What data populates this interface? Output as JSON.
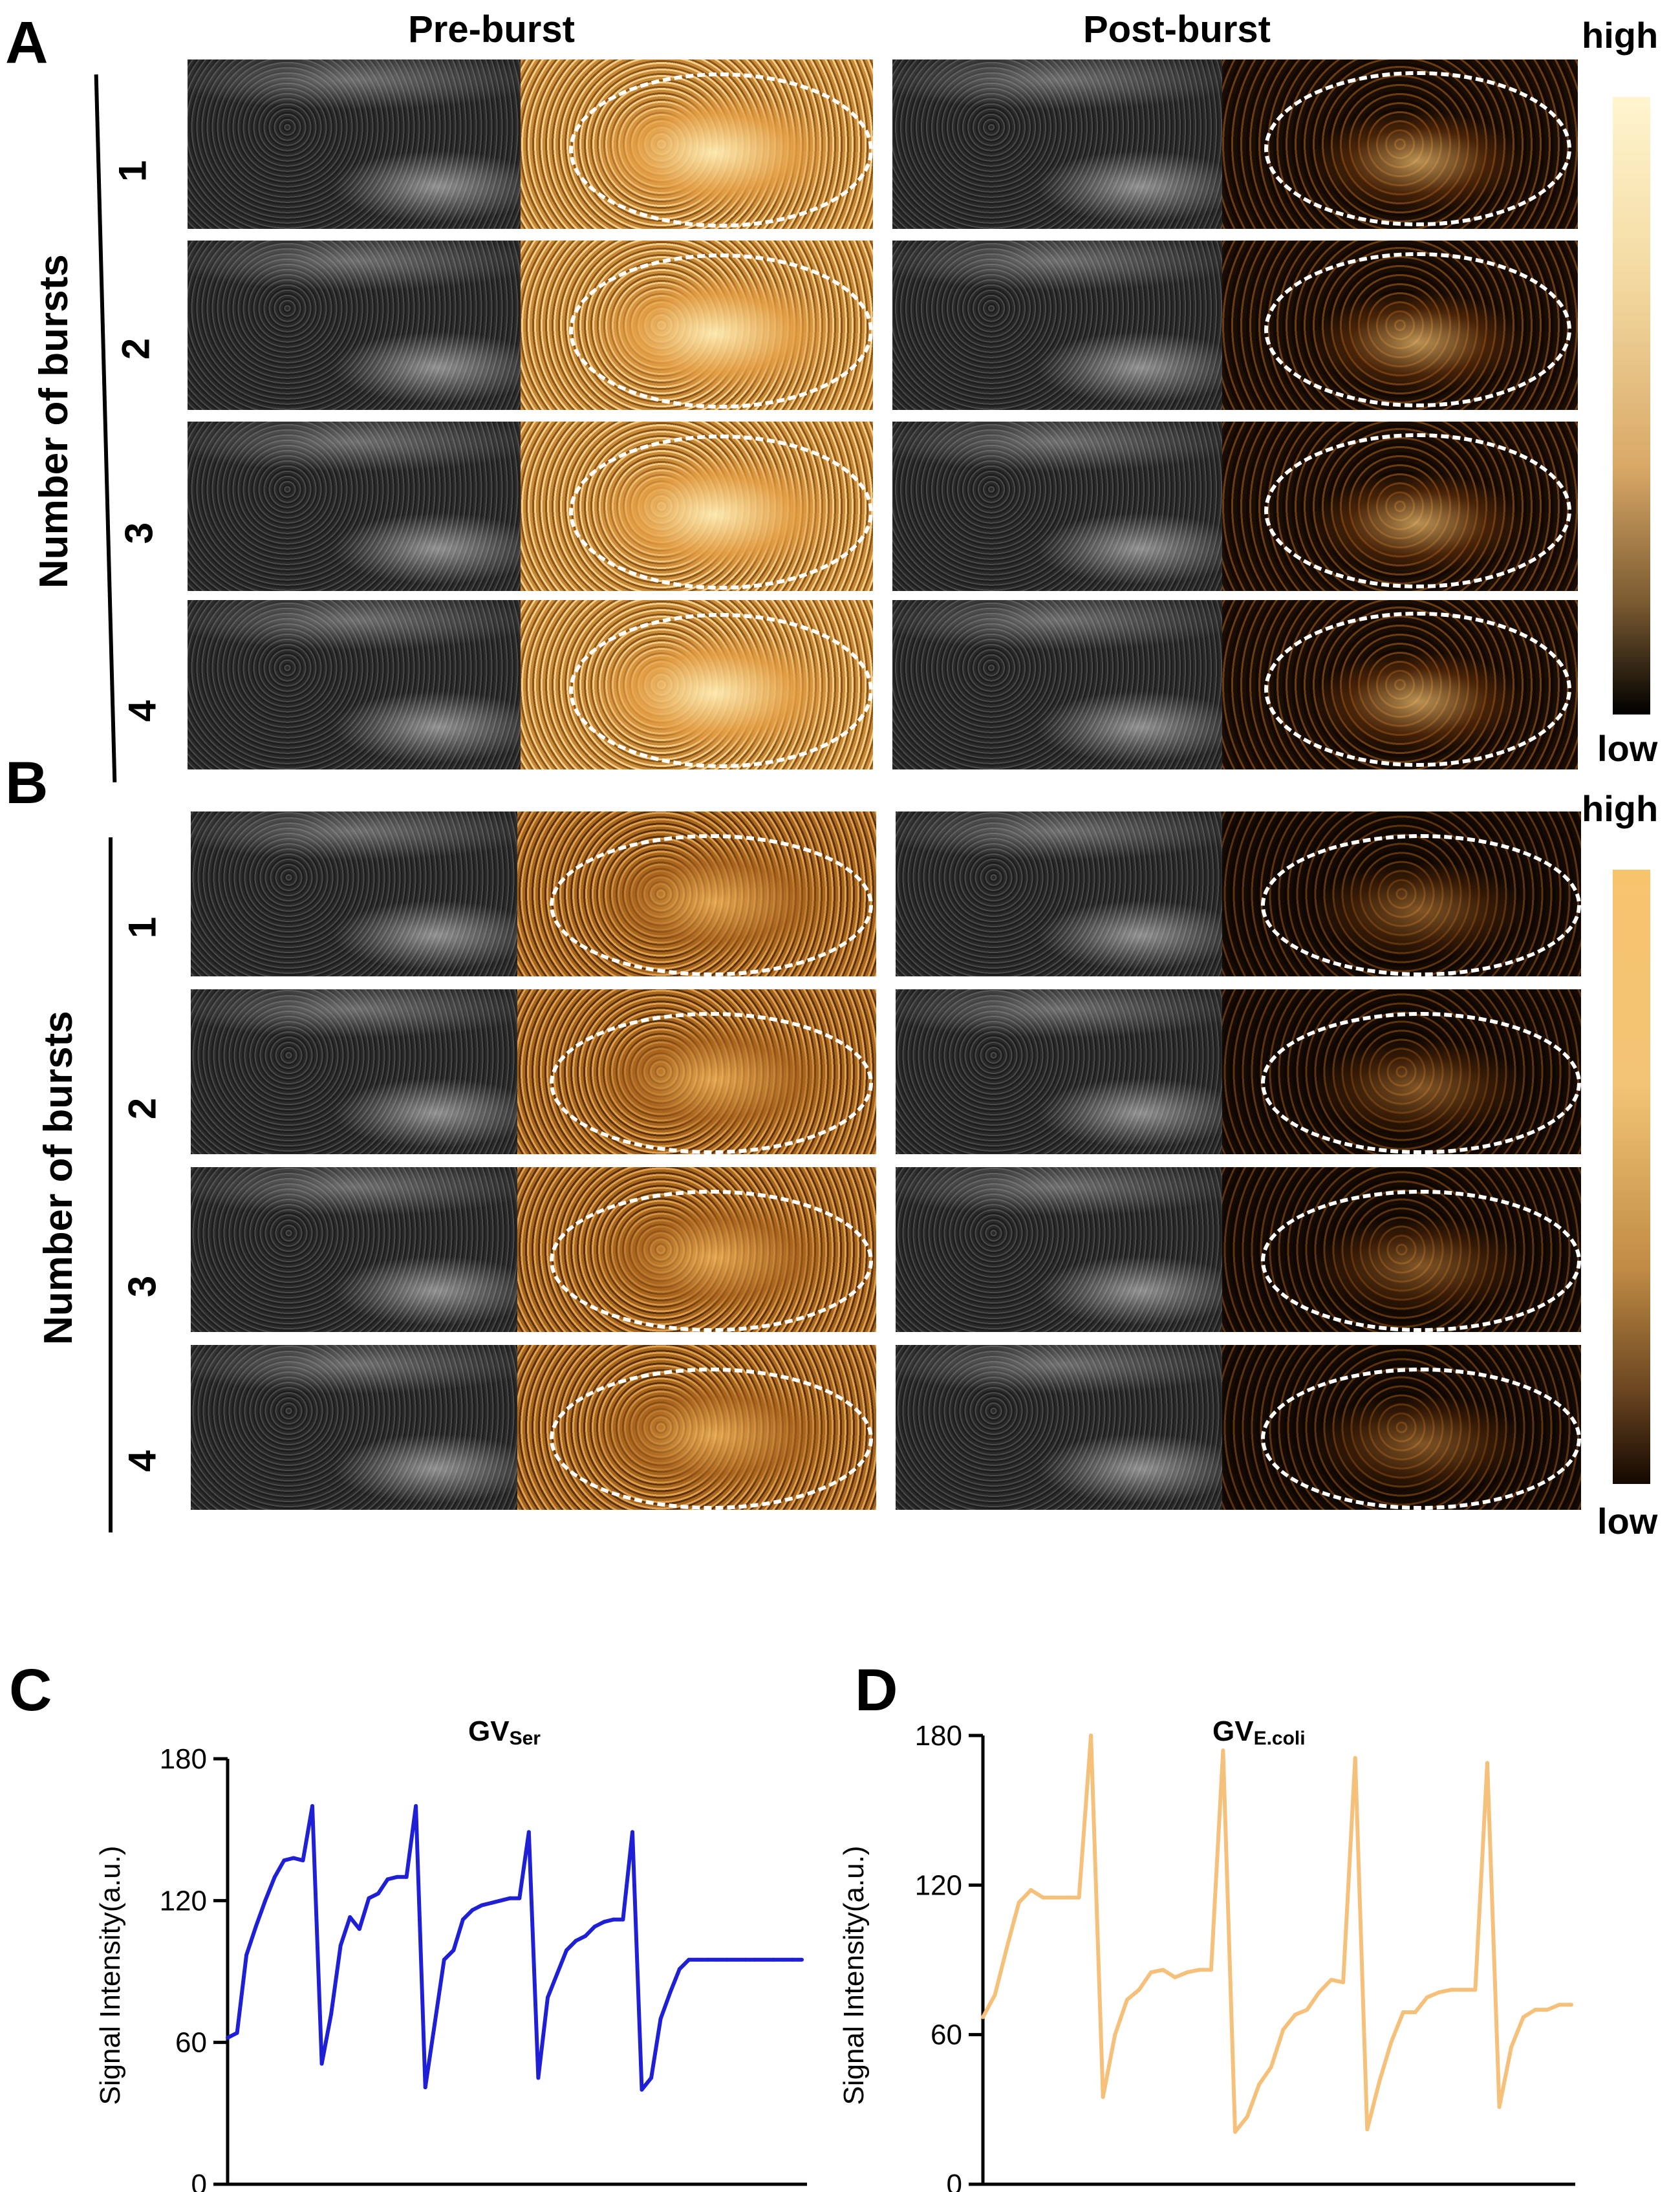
{
  "panels": {
    "a": {
      "letter": "A"
    },
    "b": {
      "letter": "B"
    },
    "c": {
      "letter": "C"
    },
    "d": {
      "letter": "D"
    }
  },
  "column_titles": {
    "pre": "Pre-burst",
    "post": "Post-burst"
  },
  "row_axis_label": "Number of bursts",
  "rows": [
    "1",
    "2",
    "3",
    "4"
  ],
  "colorbar": {
    "high": "high",
    "low": "low",
    "a_colors": [
      "#fff5cf",
      "#d9a867",
      "#000000"
    ],
    "b_colors": [
      "#f7c46e",
      "#c08b45",
      "#140800"
    ]
  },
  "chart_data": [
    {
      "type": "line",
      "title": "GVSer",
      "title_main": "GV",
      "title_sub": "Ser",
      "xlabel": "",
      "ylabel": "Signal Intensity(a.u.)",
      "ylim": [
        0,
        180
      ],
      "yticks": [
        "0",
        "60",
        "120",
        "180"
      ],
      "color": "#1f1fd6",
      "x": [
        0,
        1,
        2,
        3,
        4,
        5,
        6,
        7,
        8,
        9,
        10,
        11,
        12,
        13,
        14,
        15,
        16,
        17,
        18,
        19,
        20,
        21,
        22,
        23,
        24,
        25,
        26,
        27,
        28,
        29,
        30,
        31,
        32,
        33,
        34,
        35,
        36,
        37,
        38,
        39,
        40,
        41,
        42,
        43,
        44,
        45,
        46,
        47,
        48,
        49,
        50,
        51,
        52,
        53,
        54,
        55,
        56,
        57,
        58,
        59,
        60,
        61
      ],
      "values": [
        62,
        64,
        97,
        109,
        120,
        130,
        137,
        138,
        137,
        160,
        51,
        72,
        101,
        113,
        108,
        121,
        123,
        129,
        130,
        130,
        160,
        41,
        68,
        95,
        99,
        112,
        116,
        118,
        119,
        120,
        121,
        121,
        149,
        45,
        79,
        89,
        99,
        103,
        105,
        109,
        111,
        112,
        112,
        149,
        40,
        45,
        70,
        81,
        91,
        95,
        95,
        95,
        95,
        95,
        95,
        95,
        95,
        95,
        95,
        95,
        95,
        95
      ]
    },
    {
      "type": "line",
      "title": "GVE.coli",
      "title_main": "GV",
      "title_sub": "E.coli",
      "xlabel": "",
      "ylabel": "Signal Intensity(a.u.)",
      "ylim": [
        0,
        180
      ],
      "yticks": [
        "0",
        "60",
        "120",
        "180"
      ],
      "color": "#f5c07a",
      "x": [
        0,
        1,
        2,
        3,
        4,
        5,
        6,
        7,
        8,
        9,
        10,
        11,
        12,
        13,
        14,
        15,
        16,
        17,
        18,
        19,
        20,
        21,
        22,
        23,
        24,
        25,
        26,
        27,
        28,
        29,
        30,
        31,
        32,
        33,
        34,
        35,
        36,
        37,
        38,
        39,
        40,
        41,
        42,
        43,
        44,
        45,
        46,
        47,
        48,
        49
      ],
      "values": [
        67,
        76,
        95,
        113,
        118,
        115,
        115,
        115,
        115,
        180,
        35,
        60,
        74,
        78,
        85,
        86,
        83,
        85,
        86,
        86,
        174,
        21,
        27,
        40,
        47,
        62,
        68,
        70,
        77,
        82,
        81,
        171,
        22,
        41,
        57,
        69,
        69,
        75,
        77,
        78,
        78,
        78,
        169,
        31,
        55,
        67,
        70,
        70,
        72,
        72
      ]
    }
  ]
}
